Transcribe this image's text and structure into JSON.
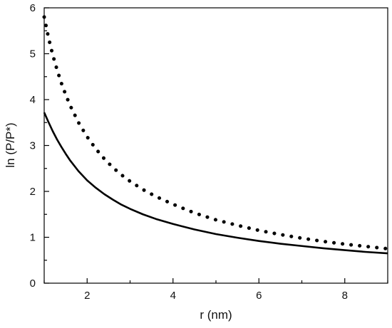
{
  "chart_data": {
    "type": "line",
    "title": "",
    "xlabel": "r (nm)",
    "ylabel": "ln (P/P*)",
    "xlim": [
      1,
      9
    ],
    "ylim": [
      0,
      6
    ],
    "xticks": [
      2,
      4,
      6,
      8
    ],
    "yticks": [
      0,
      1,
      2,
      3,
      4,
      5,
      6
    ],
    "xtick_labels": [
      "2",
      "4",
      "6",
      "8"
    ],
    "ytick_labels": [
      "0",
      "1",
      "2",
      "3",
      "4",
      "5",
      "6"
    ],
    "grid": false,
    "legend": "none",
    "series": [
      {
        "style": "dotted",
        "color": "#000000",
        "x": [
          1.0,
          1.1,
          1.2,
          1.3,
          1.4,
          1.5,
          1.6,
          1.8,
          2.0,
          2.2,
          2.4,
          2.6,
          2.8,
          3.0,
          3.3,
          3.6,
          4.0,
          4.5,
          5.0,
          5.5,
          6.0,
          6.5,
          7.0,
          7.5,
          8.0,
          8.5,
          9.0
        ],
        "y": [
          5.8,
          5.35,
          4.97,
          4.65,
          4.36,
          4.11,
          3.88,
          3.5,
          3.19,
          2.93,
          2.71,
          2.52,
          2.36,
          2.22,
          2.04,
          1.89,
          1.72,
          1.53,
          1.38,
          1.26,
          1.15,
          1.06,
          0.98,
          0.91,
          0.85,
          0.8,
          0.75
        ]
      },
      {
        "style": "solid",
        "color": "#000000",
        "x": [
          1.0,
          1.1,
          1.2,
          1.3,
          1.4,
          1.5,
          1.6,
          1.8,
          2.0,
          2.2,
          2.4,
          2.6,
          2.8,
          3.0,
          3.3,
          3.6,
          4.0,
          4.5,
          5.0,
          5.5,
          6.0,
          6.5,
          7.0,
          7.5,
          8.0,
          8.5,
          9.0
        ],
        "y": [
          3.72,
          3.51,
          3.31,
          3.13,
          2.97,
          2.82,
          2.68,
          2.44,
          2.24,
          2.08,
          1.94,
          1.82,
          1.71,
          1.62,
          1.5,
          1.4,
          1.29,
          1.17,
          1.07,
          0.99,
          0.92,
          0.86,
          0.81,
          0.76,
          0.72,
          0.68,
          0.65
        ]
      }
    ]
  }
}
